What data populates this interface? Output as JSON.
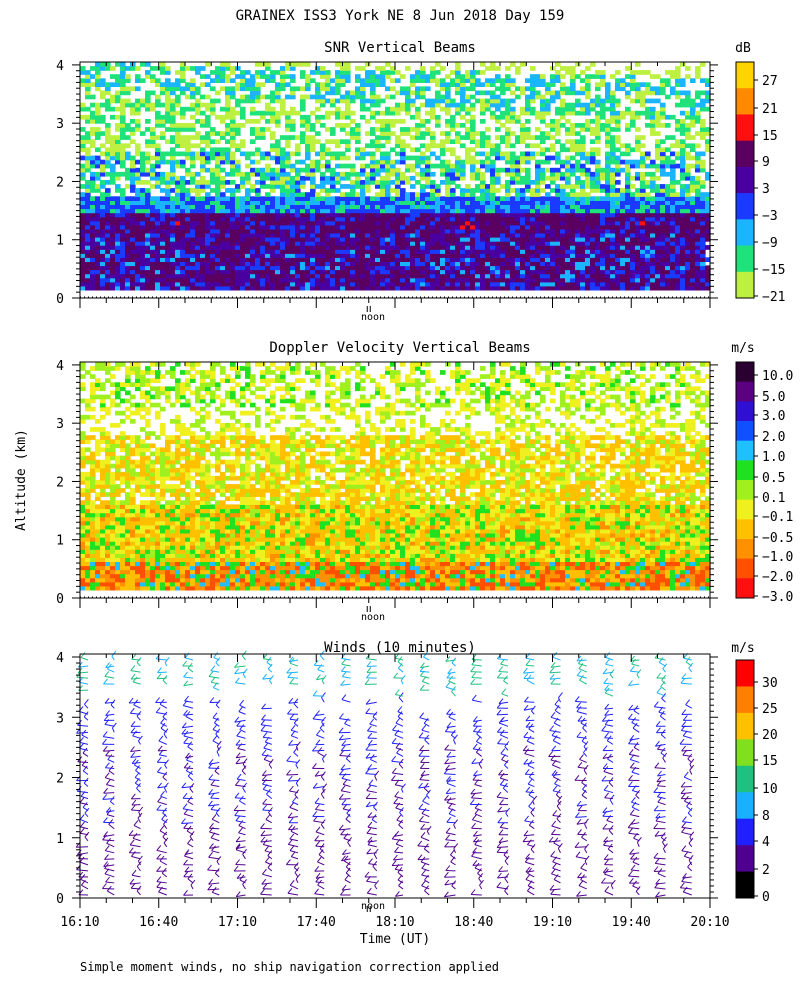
{
  "page": {
    "title": "GRAINEX ISS3 York NE   8 Jun 2018 Day 159",
    "footer": "Simple moment winds, no ship navigation correction applied",
    "noon_label": "noon",
    "y_axis_label": "Altitude (km)",
    "x_axis_label": "Time (UT)"
  },
  "chart_data": [
    {
      "type": "heatmap",
      "title": "SNR Vertical Beams",
      "colorbar_unit": "dB",
      "colorbar_ticks": [
        "27",
        "21",
        "15",
        "9",
        "3",
        "−3",
        "−9",
        "−15",
        "−21"
      ],
      "colorbar_colors": [
        "#ffd400",
        "#ff8a00",
        "#ff1010",
        "#5a0060",
        "#4a00a0",
        "#1a3aff",
        "#1ab4ff",
        "#20e27a",
        "#bdf040"
      ],
      "y_ticks": [
        "0",
        "1",
        "2",
        "3",
        "4"
      ],
      "ylim": [
        0,
        4
      ],
      "notes": "Strong returns (purple/blue) below ~1.5 km; mixed green/cyan bands between 1.5 and 3.8 km with gaps"
    },
    {
      "type": "heatmap",
      "title": "Doppler Velocity Vertical Beams",
      "colorbar_unit": "m/s",
      "colorbar_ticks": [
        "10.0",
        "5.0",
        "3.0",
        "2.0",
        "1.0",
        "0.5",
        "0.1",
        "−0.1",
        "−0.5",
        "−1.0",
        "−2.0",
        "−3.0"
      ],
      "colorbar_colors": [
        "#2a0030",
        "#5a0080",
        "#3010d0",
        "#1050ff",
        "#20c0ff",
        "#20e020",
        "#a0f020",
        "#f0f020",
        "#ffc000",
        "#ff9000",
        "#ff5000",
        "#ff1010"
      ],
      "y_ticks": [
        "0",
        "1",
        "2",
        "3",
        "4"
      ],
      "ylim": [
        0,
        4
      ],
      "notes": "Mostly yellow/orange (weak downward) with green patches; red downdrafts near surface"
    },
    {
      "type": "scatter",
      "title": "Winds (10 minutes)",
      "colorbar_unit": "m/s",
      "colorbar_ticks": [
        "30",
        "25",
        "20",
        "15",
        "10",
        "8",
        "4",
        "2",
        "0"
      ],
      "colorbar_colors": [
        "#ff0000",
        "#ff8000",
        "#ffc000",
        "#80e020",
        "#20c080",
        "#1ab0ff",
        "#2020ff",
        "#500090",
        "#000000"
      ],
      "x_ticks": [
        "16:10",
        "16:40",
        "17:10",
        "17:40",
        "18:10",
        "18:40",
        "19:10",
        "19:40",
        "20:10"
      ],
      "y_ticks": [
        "0",
        "1",
        "2",
        "3",
        "4"
      ],
      "xlim": [
        "16:10",
        "20:10"
      ],
      "ylim": [
        0,
        4
      ],
      "profile_times": [
        "16:10",
        "16:20",
        "16:30",
        "16:40",
        "16:50",
        "17:00",
        "17:10",
        "17:20",
        "17:30",
        "17:40",
        "17:50",
        "18:00",
        "18:10",
        "18:20",
        "18:30",
        "18:40",
        "18:50",
        "19:00",
        "19:10",
        "19:20",
        "19:30",
        "19:40",
        "19:50",
        "20:00"
      ]
    }
  ]
}
